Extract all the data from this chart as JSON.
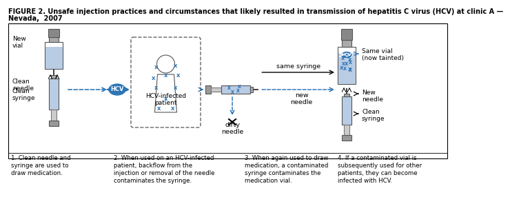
{
  "title_line1": "FIGURE 2. Unsafe injection practices and circumstances that likely resulted in transmission of hepatitis C virus (HCV) at clinic A —",
  "title_line2": "Nevada,  2007",
  "caption1": "1. Clean needle and\nsyringe are used to\ndraw medication.",
  "caption2": "2. When used on an HCV-infected\npatient, backflow from the\ninjection or removal of the needle\ncontaminates the syringe.",
  "caption3": "3. When again used to draw\nmedication, a contaminated\nsyringe contaminates the\nmedication vial.",
  "caption4": "4. If a contaminated vial is\nsubsequently used for other\npatients, they can become\ninfected with HCV.",
  "label_new_vial": "New\nvial",
  "label_clean_needle": "Clean\nneedle",
  "label_clean_syringe": "Clean\nsyringe",
  "label_hcv_patient": "HCV-infected\npatient",
  "label_same_syringe": "same syringe",
  "label_new_needle": "new\nneedle",
  "label_dirty_needle": "dirty\nneedle",
  "label_same_vial": "Same vial\n(now tainted)",
  "label_new_needle2": "New\nneedle",
  "label_clean_syringe2": "Clean\nsyringe",
  "blue_light": "#b8cce4",
  "blue_mid": "#2e75b6",
  "blue_dark": "#1f4e79",
  "blue_arrow": "#1f6bb0",
  "gray_fill": "#c0c0c0",
  "gray_dark": "#808080",
  "bg_color": "#ffffff",
  "text_color": "#000000",
  "title_fontsize": 7.0,
  "caption_fontsize": 6.2,
  "label_fontsize": 6.5,
  "diagram_fontsize": 6.8
}
